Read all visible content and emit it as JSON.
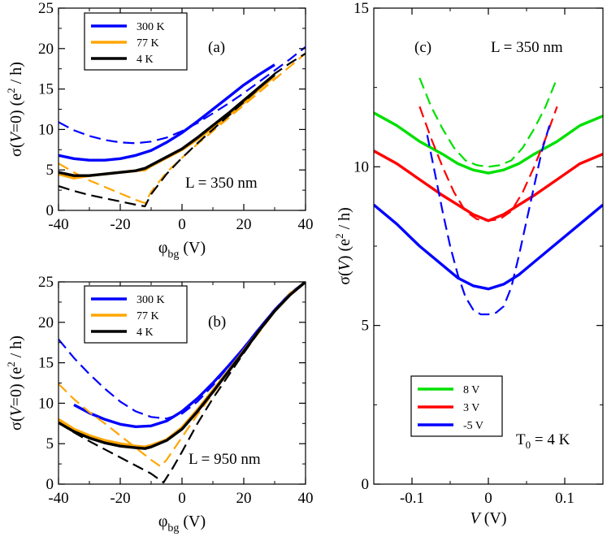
{
  "chart_data": [
    {
      "id": "a",
      "type": "line",
      "panel_label": "(a)",
      "annotation": "L = 350 nm",
      "xlabel": "φ_bg (V)",
      "ylabel": "σ(V=0) (e²/h)",
      "xlim": [
        -40,
        40
      ],
      "ylim": [
        0,
        25
      ],
      "xticks": [
        -40,
        -20,
        0,
        20,
        40
      ],
      "yticks": [
        0,
        5,
        10,
        15,
        20,
        25
      ],
      "xtick_labels": [
        "-40",
        "-20",
        "0",
        "20",
        "40"
      ],
      "ytick_labels": [
        "0",
        "5",
        "10",
        "15",
        "20",
        "25"
      ],
      "legend": [
        {
          "name": "300 K",
          "color": "#0000ff"
        },
        {
          "name": "77 K",
          "color": "#ffa500"
        },
        {
          "name": "4 K",
          "color": "#000000"
        }
      ],
      "series": [
        {
          "name": "300 K",
          "color": "#0000ff",
          "style": "solid",
          "x": [
            -40,
            -35,
            -30,
            -25,
            -20,
            -15,
            -10,
            -5,
            0,
            5,
            10,
            15,
            20,
            25,
            30
          ],
          "y": [
            6.8,
            6.4,
            6.2,
            6.2,
            6.4,
            6.8,
            7.4,
            8.4,
            9.6,
            11.0,
            12.5,
            14.0,
            15.5,
            16.8,
            18.0
          ]
        },
        {
          "name": "300 K",
          "color": "#0000ff",
          "style": "dashed",
          "x": [
            -40,
            -35,
            -30,
            -25,
            -20,
            -15,
            -10,
            -5,
            0,
            5,
            10,
            15,
            20,
            25,
            30,
            35,
            40
          ],
          "y": [
            10.9,
            9.9,
            9.2,
            8.7,
            8.4,
            8.3,
            8.5,
            9.0,
            9.8,
            10.8,
            12.0,
            13.2,
            14.5,
            15.9,
            17.3,
            18.7,
            20.2
          ]
        },
        {
          "name": "77 K",
          "color": "#ffa500",
          "style": "solid",
          "x": [
            -40,
            -35,
            -30,
            -25,
            -20,
            -15,
            -12,
            -10,
            -5,
            0,
            5,
            10,
            15,
            20,
            25,
            30
          ],
          "y": [
            4.5,
            4.0,
            4.3,
            4.5,
            4.7,
            4.9,
            5.0,
            5.5,
            6.5,
            7.5,
            8.8,
            10.2,
            11.7,
            13.3,
            15.0,
            16.6
          ]
        },
        {
          "name": "77 K",
          "color": "#ffa500",
          "style": "dashed",
          "x": [
            -40,
            -35,
            -30,
            -25,
            -20,
            -15,
            -12,
            -10,
            -5,
            0,
            5,
            10,
            15,
            20,
            25,
            30,
            35,
            40
          ],
          "y": [
            5.8,
            4.7,
            3.7,
            2.9,
            2.1,
            1.3,
            0.9,
            2.3,
            4.7,
            6.5,
            8.2,
            9.8,
            11.4,
            13.0,
            14.6,
            16.2,
            17.8,
            19.4
          ]
        },
        {
          "name": "4 K",
          "color": "#000000",
          "style": "solid",
          "x": [
            -40,
            -35,
            -30,
            -25,
            -20,
            -15,
            -12,
            -10,
            -5,
            0,
            5,
            10,
            15,
            20,
            25,
            30
          ],
          "y": [
            4.7,
            4.3,
            4.3,
            4.5,
            4.7,
            4.9,
            5.2,
            5.6,
            6.6,
            7.6,
            9.0,
            10.5,
            12.0,
            13.6,
            15.2,
            16.8
          ]
        },
        {
          "name": "4 K",
          "color": "#000000",
          "style": "dashed",
          "x": [
            -40,
            -35,
            -30,
            -25,
            -20,
            -15,
            -12,
            -10,
            -5,
            0,
            5,
            10,
            15,
            20,
            25,
            30,
            35,
            40
          ],
          "y": [
            3.0,
            2.4,
            1.9,
            1.5,
            1.1,
            0.7,
            0.5,
            2.0,
            4.5,
            6.5,
            8.3,
            10.0,
            11.7,
            13.4,
            15.1,
            16.9,
            18.2,
            19.4
          ]
        }
      ]
    },
    {
      "id": "b",
      "type": "line",
      "panel_label": "(b)",
      "annotation": "L = 950 nm",
      "xlabel": "φ_bg (V)",
      "ylabel": "σ(V=0) (e²/h)",
      "xlim": [
        -40,
        40
      ],
      "ylim": [
        0,
        25
      ],
      "xticks": [
        -40,
        -20,
        0,
        20,
        40
      ],
      "yticks": [
        0,
        5,
        10,
        15,
        20,
        25
      ],
      "xtick_labels": [
        "-40",
        "-20",
        "0",
        "20",
        "40"
      ],
      "ytick_labels": [
        "0",
        "5",
        "10",
        "15",
        "20",
        "25"
      ],
      "legend": [
        {
          "name": "300 K",
          "color": "#0000ff"
        },
        {
          "name": "77 K",
          "color": "#ffa500"
        },
        {
          "name": "4 K",
          "color": "#000000"
        }
      ],
      "series": [
        {
          "name": "300 K",
          "color": "#0000ff",
          "style": "solid",
          "x": [
            -35,
            -30,
            -25,
            -20,
            -15,
            -10,
            -5,
            0,
            5,
            10,
            15,
            20,
            25,
            30,
            35,
            40
          ],
          "y": [
            9.8,
            8.8,
            8.0,
            7.4,
            7.1,
            7.2,
            7.8,
            9.0,
            10.6,
            12.5,
            14.6,
            16.8,
            19.2,
            21.5,
            23.5,
            25.0
          ]
        },
        {
          "name": "300 K",
          "color": "#0000ff",
          "style": "dashed",
          "x": [
            -40,
            -35,
            -30,
            -25,
            -20,
            -15,
            -10,
            -5,
            0,
            5,
            10,
            15,
            20,
            25,
            30,
            35,
            40
          ],
          "y": [
            17.9,
            15.6,
            13.6,
            11.8,
            10.2,
            9.0,
            8.3,
            8.1,
            8.7,
            10.2,
            12.2,
            14.5,
            16.9,
            19.3,
            21.6,
            23.6,
            25.0
          ]
        },
        {
          "name": "77 K",
          "color": "#ffa500",
          "style": "solid",
          "x": [
            -40,
            -35,
            -30,
            -25,
            -20,
            -15,
            -12,
            -10,
            -5,
            0,
            5,
            10,
            15,
            20,
            25,
            30,
            35,
            40
          ],
          "y": [
            8.0,
            6.8,
            6.0,
            5.4,
            5.0,
            4.7,
            4.6,
            4.8,
            5.5,
            7.0,
            9.2,
            11.6,
            14.0,
            16.5,
            19.0,
            21.4,
            23.4,
            25.0
          ]
        },
        {
          "name": "77 K",
          "color": "#ffa500",
          "style": "dashed",
          "x": [
            -40,
            -35,
            -30,
            -25,
            -20,
            -15,
            -10,
            -7,
            -5,
            0,
            5,
            10,
            15,
            20,
            25,
            30,
            35,
            40
          ],
          "y": [
            12.4,
            10.5,
            8.9,
            7.5,
            6.0,
            4.5,
            3.0,
            2.2,
            3.0,
            5.8,
            8.6,
            11.2,
            13.8,
            16.3,
            18.8,
            21.3,
            23.6,
            25.0
          ]
        },
        {
          "name": "4 K",
          "color": "#000000",
          "style": "solid",
          "x": [
            -40,
            -35,
            -30,
            -25,
            -20,
            -15,
            -12,
            -10,
            -5,
            0,
            5,
            10,
            15,
            20,
            25,
            30,
            35,
            40
          ],
          "y": [
            7.6,
            6.5,
            5.7,
            5.1,
            4.7,
            4.5,
            4.4,
            4.6,
            5.4,
            6.8,
            9.0,
            11.4,
            13.9,
            16.4,
            19.0,
            21.4,
            23.4,
            25.0
          ]
        },
        {
          "name": "4 K",
          "color": "#000000",
          "style": "dashed",
          "x": [
            -40,
            -35,
            -30,
            -25,
            -20,
            -15,
            -10,
            -6,
            -3,
            0,
            5,
            10,
            15,
            20,
            25,
            30,
            35,
            40
          ],
          "y": [
            7.6,
            6.4,
            5.3,
            4.3,
            3.3,
            2.3,
            1.3,
            0.2,
            2.0,
            4.0,
            7.5,
            10.6,
            13.4,
            16.2,
            18.9,
            21.4,
            23.4,
            25.0
          ]
        }
      ]
    },
    {
      "id": "c",
      "type": "line",
      "panel_label": "(c)",
      "annotation": "L = 350 nm",
      "annotation2": "T₀ = 4 K",
      "xlabel": "V (V)",
      "ylabel": "σ(V) (e²/h)",
      "xlim": [
        -0.15,
        0.15
      ],
      "ylim": [
        0,
        15
      ],
      "xticks": [
        -0.1,
        0,
        0.1
      ],
      "yticks": [
        0,
        5,
        10,
        15
      ],
      "xtick_labels": [
        "-0.1",
        "0",
        "0.1"
      ],
      "ytick_labels": [
        "0",
        "5",
        "10",
        "15"
      ],
      "legend": [
        {
          "name": "8 V",
          "color": "#00e000"
        },
        {
          "name": "3 V",
          "color": "#ff0000"
        },
        {
          "name": "-5 V",
          "color": "#0000ff"
        }
      ],
      "series": [
        {
          "name": "8 V",
          "color": "#00e000",
          "style": "solid",
          "x": [
            -0.15,
            -0.12,
            -0.09,
            -0.06,
            -0.04,
            -0.02,
            0,
            0.02,
            0.04,
            0.06,
            0.09,
            0.12,
            0.15
          ],
          "y": [
            11.7,
            11.3,
            10.8,
            10.4,
            10.1,
            9.9,
            9.8,
            9.9,
            10.1,
            10.4,
            10.8,
            11.3,
            11.6
          ]
        },
        {
          "name": "8 V",
          "color": "#00e000",
          "style": "dashed",
          "x": [
            -0.09,
            -0.075,
            -0.06,
            -0.045,
            -0.03,
            -0.015,
            0,
            0.015,
            0.03,
            0.045,
            0.06,
            0.075,
            0.09
          ],
          "y": [
            12.8,
            11.9,
            11.2,
            10.6,
            10.2,
            10.05,
            10.0,
            10.05,
            10.2,
            10.6,
            11.2,
            11.9,
            12.8
          ]
        },
        {
          "name": "3 V",
          "color": "#ff0000",
          "style": "solid",
          "x": [
            -0.15,
            -0.12,
            -0.09,
            -0.06,
            -0.04,
            -0.02,
            0,
            0.02,
            0.04,
            0.06,
            0.09,
            0.12,
            0.15
          ],
          "y": [
            10.5,
            10.1,
            9.6,
            9.1,
            8.8,
            8.5,
            8.3,
            8.5,
            8.8,
            9.1,
            9.6,
            10.1,
            10.4
          ]
        },
        {
          "name": "3 V",
          "color": "#ff0000",
          "style": "dashed",
          "x": [
            -0.09,
            -0.075,
            -0.06,
            -0.045,
            -0.03,
            -0.015,
            0,
            0.015,
            0.03,
            0.045,
            0.06,
            0.075,
            0.09
          ],
          "y": [
            11.9,
            10.9,
            10.0,
            9.2,
            8.6,
            8.35,
            8.3,
            8.35,
            8.6,
            9.2,
            10.0,
            10.9,
            11.9
          ]
        },
        {
          "name": "-5 V",
          "color": "#0000ff",
          "style": "solid",
          "x": [
            -0.15,
            -0.12,
            -0.09,
            -0.06,
            -0.04,
            -0.02,
            0,
            0.02,
            0.04,
            0.06,
            0.09,
            0.12,
            0.15
          ],
          "y": [
            8.8,
            8.2,
            7.5,
            6.9,
            6.5,
            6.25,
            6.15,
            6.3,
            6.6,
            7.0,
            7.6,
            8.2,
            8.8
          ]
        },
        {
          "name": "-5 V",
          "color": "#0000ff",
          "style": "dashed",
          "x": [
            -0.08,
            -0.07,
            -0.06,
            -0.05,
            -0.04,
            -0.03,
            -0.02,
            -0.01,
            0,
            0.01,
            0.02,
            0.03,
            0.04,
            0.05,
            0.06,
            0.07,
            0.08
          ],
          "y": [
            11.0,
            9.8,
            8.6,
            7.5,
            6.6,
            5.9,
            5.5,
            5.35,
            5.35,
            5.4,
            5.6,
            6.2,
            7.2,
            8.3,
            9.4,
            10.5,
            11.3
          ]
        }
      ]
    }
  ]
}
